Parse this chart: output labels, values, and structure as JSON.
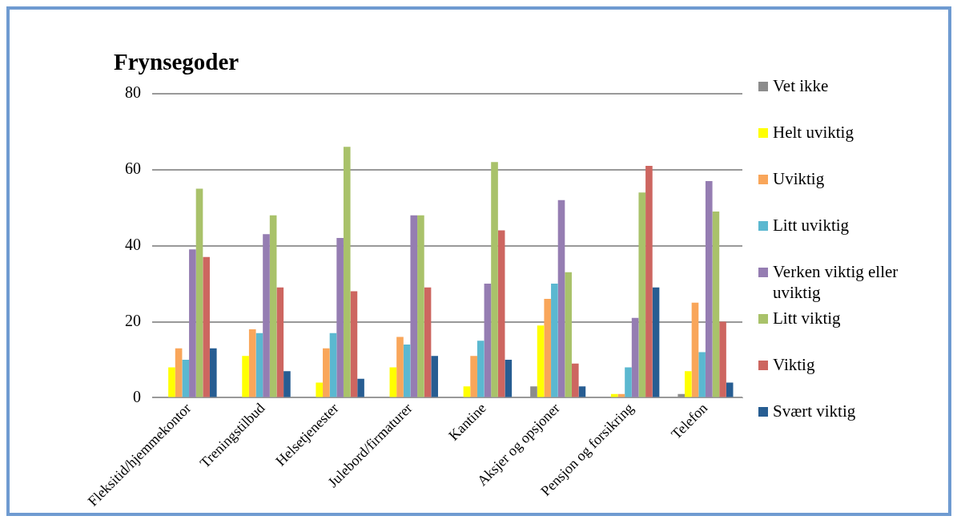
{
  "chart_data": {
    "type": "bar",
    "title": "Frynsegoder",
    "categories": [
      "Fleksitid/hjemmekontor",
      "Treningstilbud",
      "Helsetjenester",
      "Julebord/firmaturer",
      "Kantine",
      "Aksjer og opsjoner",
      "Pensjon og forsikring",
      "Telefon"
    ],
    "series": [
      {
        "name": "Vet ikke",
        "color": "#8c8c8c",
        "values": [
          0,
          0,
          0,
          0,
          0,
          3,
          0,
          1
        ]
      },
      {
        "name": "Helt uviktig",
        "color": "#ffff00",
        "values": [
          8,
          11,
          4,
          8,
          3,
          19,
          1,
          7
        ]
      },
      {
        "name": "Uviktig",
        "color": "#f9a65a",
        "values": [
          13,
          18,
          13,
          16,
          11,
          26,
          1,
          25
        ]
      },
      {
        "name": "Litt uviktig",
        "color": "#5bb8d0",
        "values": [
          10,
          17,
          17,
          14,
          15,
          30,
          8,
          12
        ]
      },
      {
        "name": "Verken viktig eller uviktig",
        "color": "#957db2",
        "values": [
          39,
          43,
          42,
          48,
          30,
          52,
          21,
          57
        ]
      },
      {
        "name": "Litt viktig",
        "color": "#a9c26a",
        "values": [
          55,
          48,
          66,
          48,
          62,
          33,
          54,
          49
        ]
      },
      {
        "name": "Viktig",
        "color": "#cd6660",
        "values": [
          37,
          29,
          28,
          29,
          44,
          9,
          61,
          20
        ]
      },
      {
        "name": "Svært viktig",
        "color": "#275d92",
        "values": [
          13,
          7,
          5,
          11,
          10,
          3,
          29,
          4
        ]
      }
    ],
    "ylim": [
      0,
      80
    ],
    "yticks": [
      0,
      20,
      40,
      60,
      80
    ],
    "grid": "y",
    "legend": "right"
  }
}
